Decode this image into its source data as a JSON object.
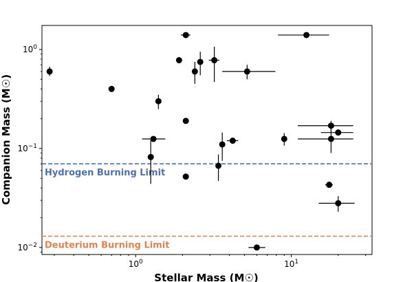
{
  "chart_data": {
    "type": "scatter",
    "xlabel": "Stellar Mass (M☉)",
    "ylabel": "Companion Mass (M☉)",
    "xscale": "log",
    "yscale": "log",
    "xlim": [
      0.25,
      33
    ],
    "ylim": [
      0.0085,
      1.75
    ],
    "grid": false,
    "x_ticks": [
      {
        "value": 1,
        "mantissa": "10",
        "exp": "0"
      },
      {
        "value": 10,
        "mantissa": "10",
        "exp": "1"
      }
    ],
    "y_ticks": [
      {
        "value": 0.01,
        "mantissa": "10",
        "exp": "−2"
      },
      {
        "value": 0.1,
        "mantissa": "10",
        "exp": "−1"
      },
      {
        "value": 1,
        "mantissa": "10",
        "exp": "0"
      }
    ],
    "limits": [
      {
        "name": "Hydrogen Burning Limit",
        "value": 0.07,
        "color": "#4c72b0"
      },
      {
        "name": "Deuterium Burning Limit",
        "value": 0.013,
        "color": "#dd8452"
      }
    ],
    "points": [
      {
        "x": 0.28,
        "y": 0.6,
        "yerr": [
          0.54,
          0.67
        ]
      },
      {
        "x": 0.7,
        "y": 0.4
      },
      {
        "x": 1.4,
        "y": 0.3,
        "yerr": [
          0.25,
          0.35
        ]
      },
      {
        "x": 2.1,
        "y": 1.4,
        "xerr": [
          1.95,
          2.25
        ]
      },
      {
        "x": 1.9,
        "y": 0.78
      },
      {
        "x": 2.4,
        "y": 0.6,
        "yerr": [
          0.45,
          0.75
        ]
      },
      {
        "x": 2.6,
        "y": 0.75,
        "yerr": [
          0.55,
          0.95
        ]
      },
      {
        "x": 3.2,
        "y": 0.78,
        "xerr": [
          2.95,
          3.45
        ],
        "yerr": [
          0.47,
          1.07
        ]
      },
      {
        "x": 5.2,
        "y": 0.6,
        "xerr": [
          3.6,
          7.9
        ],
        "yerr": [
          0.5,
          0.7
        ]
      },
      {
        "x": 12.5,
        "y": 1.4,
        "xerr": [
          8.2,
          17.5
        ]
      },
      {
        "x": 2.1,
        "y": 0.19
      },
      {
        "x": 1.3,
        "y": 0.125,
        "xerr": [
          1.1,
          1.55
        ]
      },
      {
        "x": 1.25,
        "y": 0.082,
        "yerr": [
          0.044,
          0.12
        ]
      },
      {
        "x": 2.1,
        "y": 0.052
      },
      {
        "x": 3.4,
        "y": 0.067,
        "yerr": [
          0.047,
          0.087
        ]
      },
      {
        "x": 3.6,
        "y": 0.11,
        "yerr": [
          0.075,
          0.145
        ]
      },
      {
        "x": 4.2,
        "y": 0.12,
        "xerr": [
          3.85,
          4.55
        ]
      },
      {
        "x": 9.0,
        "y": 0.125,
        "yerr": [
          0.107,
          0.143
        ]
      },
      {
        "x": 18.0,
        "y": 0.17,
        "xerr": [
          11.0,
          25.0
        ],
        "yerr": [
          0.15,
          0.19
        ]
      },
      {
        "x": 20.0,
        "y": 0.145,
        "xerr": [
          15.5,
          25.0
        ]
      },
      {
        "x": 18.0,
        "y": 0.125,
        "xerr": [
          11.0,
          25.0
        ],
        "yerr": [
          0.09,
          0.16
        ]
      },
      {
        "x": 17.5,
        "y": 0.043,
        "xerr": [
          16.5,
          18.5
        ]
      },
      {
        "x": 20.0,
        "y": 0.028,
        "xerr": [
          15.0,
          25.5
        ],
        "yerr": [
          0.023,
          0.033
        ]
      },
      {
        "x": 6.0,
        "y": 0.01,
        "xerr": [
          5.3,
          6.8
        ]
      }
    ]
  }
}
